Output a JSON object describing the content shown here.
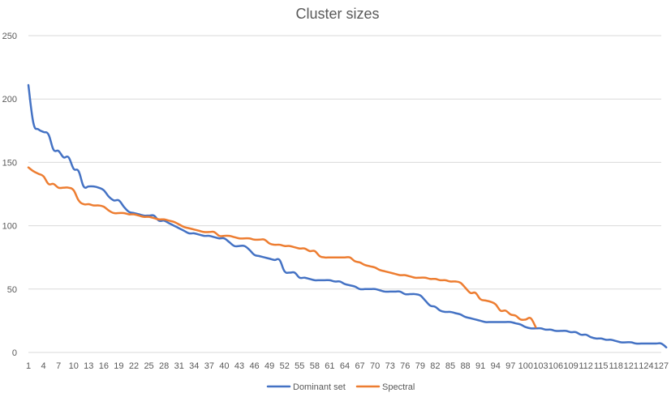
{
  "chart_data": {
    "type": "line",
    "title": "Cluster sizes",
    "xlabel": "",
    "ylabel": "",
    "ylim": [
      0,
      250
    ],
    "yticks": [
      0,
      50,
      100,
      150,
      200,
      250
    ],
    "xlim": [
      1,
      127
    ],
    "xtick_labels": [
      "1",
      "4",
      "7",
      "10",
      "13",
      "16",
      "19",
      "22",
      "25",
      "28",
      "31",
      "34",
      "37",
      "40",
      "43",
      "46",
      "49",
      "52",
      "55",
      "58",
      "61",
      "64",
      "67",
      "70",
      "73",
      "76",
      "79",
      "82",
      "85",
      "88",
      "91",
      "94",
      "97",
      "100",
      "103",
      "106",
      "109",
      "112",
      "115",
      "118",
      "121",
      "124",
      "127"
    ],
    "grid": "horizontal",
    "legend_position": "bottom",
    "colors": {
      "Dominant set": "#4472c4",
      "Spectral": "#ed7d31"
    },
    "series": [
      {
        "name": "Dominant set",
        "color": "#4472c4",
        "values": [
          211,
          181,
          176,
          174,
          172,
          160,
          159,
          154,
          154,
          145,
          143,
          131,
          131,
          131,
          130,
          128,
          123,
          120,
          120,
          115,
          111,
          110,
          109,
          108,
          108,
          108,
          104,
          104,
          102,
          100,
          98,
          96,
          94,
          94,
          93,
          92,
          92,
          91,
          90,
          90,
          87,
          84,
          84,
          84,
          81,
          77,
          76,
          75,
          74,
          73,
          73,
          64,
          63,
          63,
          59,
          59,
          58,
          57,
          57,
          57,
          57,
          56,
          56,
          54,
          53,
          52,
          50,
          50,
          50,
          50,
          49,
          48,
          48,
          48,
          48,
          46,
          46,
          46,
          45,
          41,
          37,
          36,
          33,
          32,
          32,
          31,
          30,
          28,
          27,
          26,
          25,
          24,
          24,
          24,
          24,
          24,
          24,
          23,
          22,
          20,
          19,
          19,
          19,
          18,
          18,
          17,
          17,
          17,
          16,
          16,
          14,
          14,
          12,
          11,
          11,
          10,
          10,
          9,
          8,
          8,
          8,
          7,
          7,
          7,
          7,
          7,
          7,
          4
        ]
      },
      {
        "name": "Spectral",
        "color": "#ed7d31",
        "values": [
          146,
          143,
          141,
          139,
          133,
          133,
          130,
          130,
          130,
          128,
          120,
          117,
          117,
          116,
          116,
          115,
          112,
          110,
          110,
          110,
          109,
          109,
          108,
          107,
          107,
          106,
          105,
          105,
          104,
          103,
          101,
          99,
          98,
          97,
          96,
          95,
          95,
          95,
          92,
          92,
          92,
          91,
          90,
          90,
          90,
          89,
          89,
          89,
          86,
          85,
          85,
          84,
          84,
          83,
          82,
          82,
          80,
          80,
          76,
          75,
          75,
          75,
          75,
          75,
          75,
          72,
          71,
          69,
          68,
          67,
          65,
          64,
          63,
          62,
          61,
          61,
          60,
          59,
          59,
          59,
          58,
          58,
          57,
          57,
          56,
          56,
          55,
          51,
          47,
          47,
          42,
          41,
          40,
          38,
          33,
          33,
          30,
          29,
          26,
          26,
          27,
          20
        ]
      }
    ]
  }
}
